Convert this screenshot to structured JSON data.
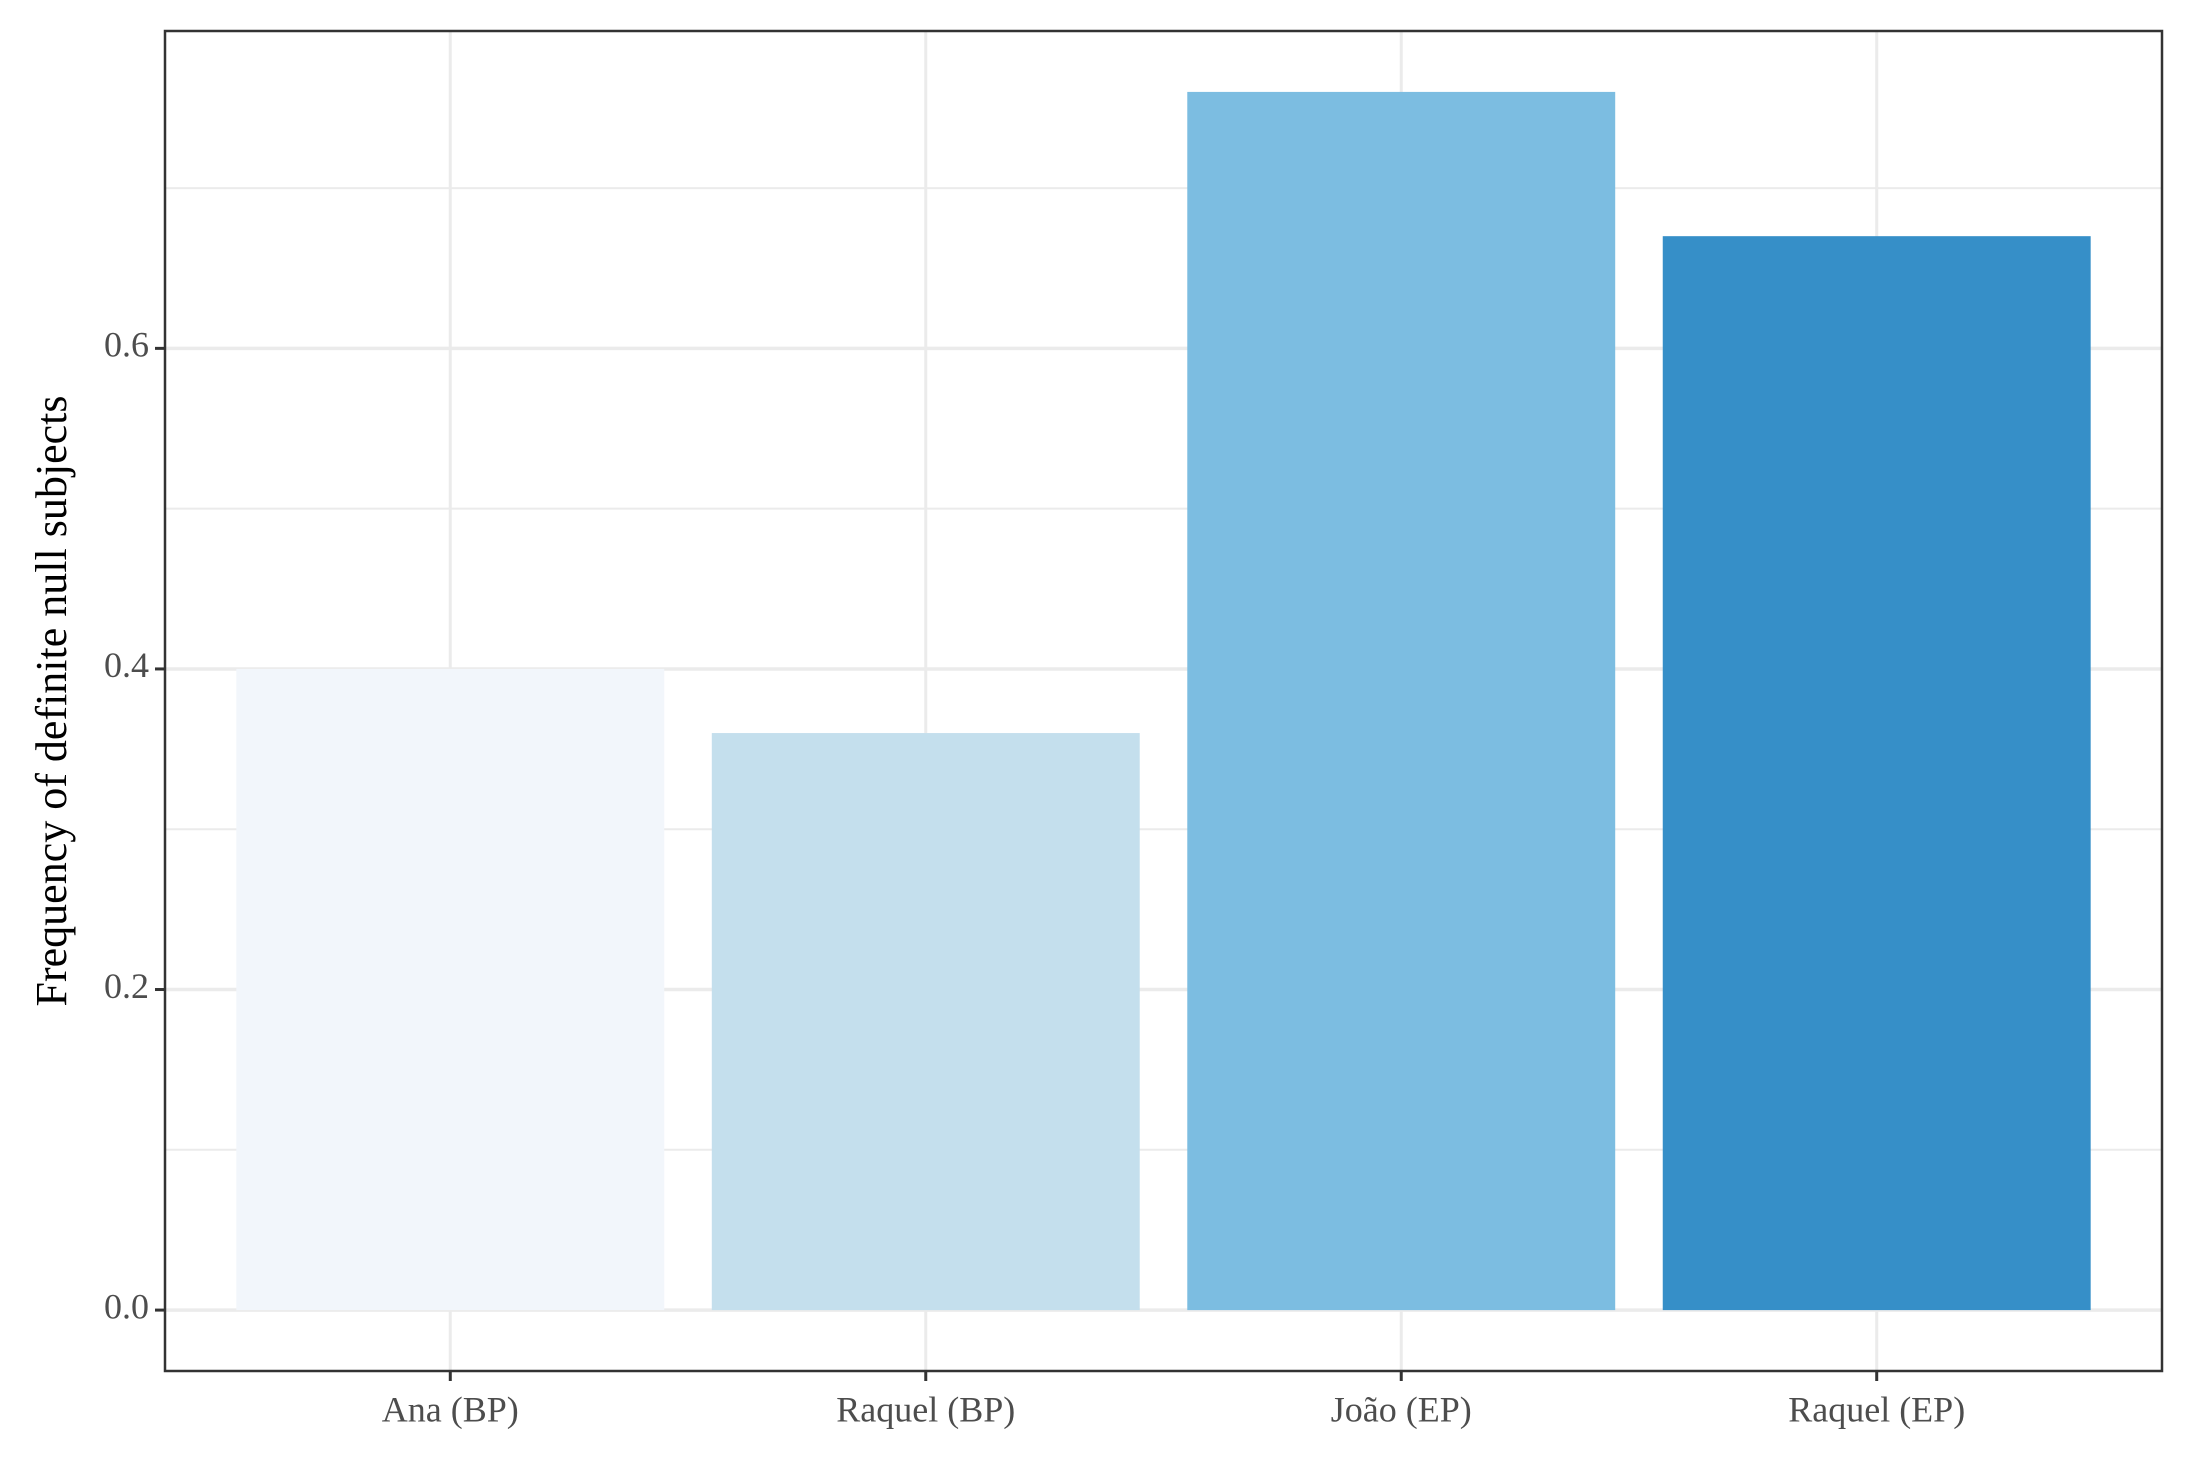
{
  "chart_data": {
    "type": "bar",
    "y_label": "Frequency of definite null subjects",
    "categories": [
      "Ana (BP)",
      "Raquel (BP)",
      "João (EP)",
      "Raquel (EP)"
    ],
    "values": [
      0.4,
      0.36,
      0.76,
      0.67
    ],
    "colors": [
      "#f2f6fb",
      "#c4dfed",
      "#7cbde1",
      "#368fc8"
    ],
    "ylim": [
      -0.038,
      0.798
    ],
    "yticks": [
      {
        "value": 0,
        "label": "0.0"
      },
      {
        "value": 0.2,
        "label": "0.2"
      },
      {
        "value": 0.4,
        "label": "0.4"
      },
      {
        "value": 0.6,
        "label": "0.6"
      }
    ],
    "minor_yticks": [
      0.1,
      0.3,
      0.5,
      0.7
    ],
    "grid": true
  }
}
